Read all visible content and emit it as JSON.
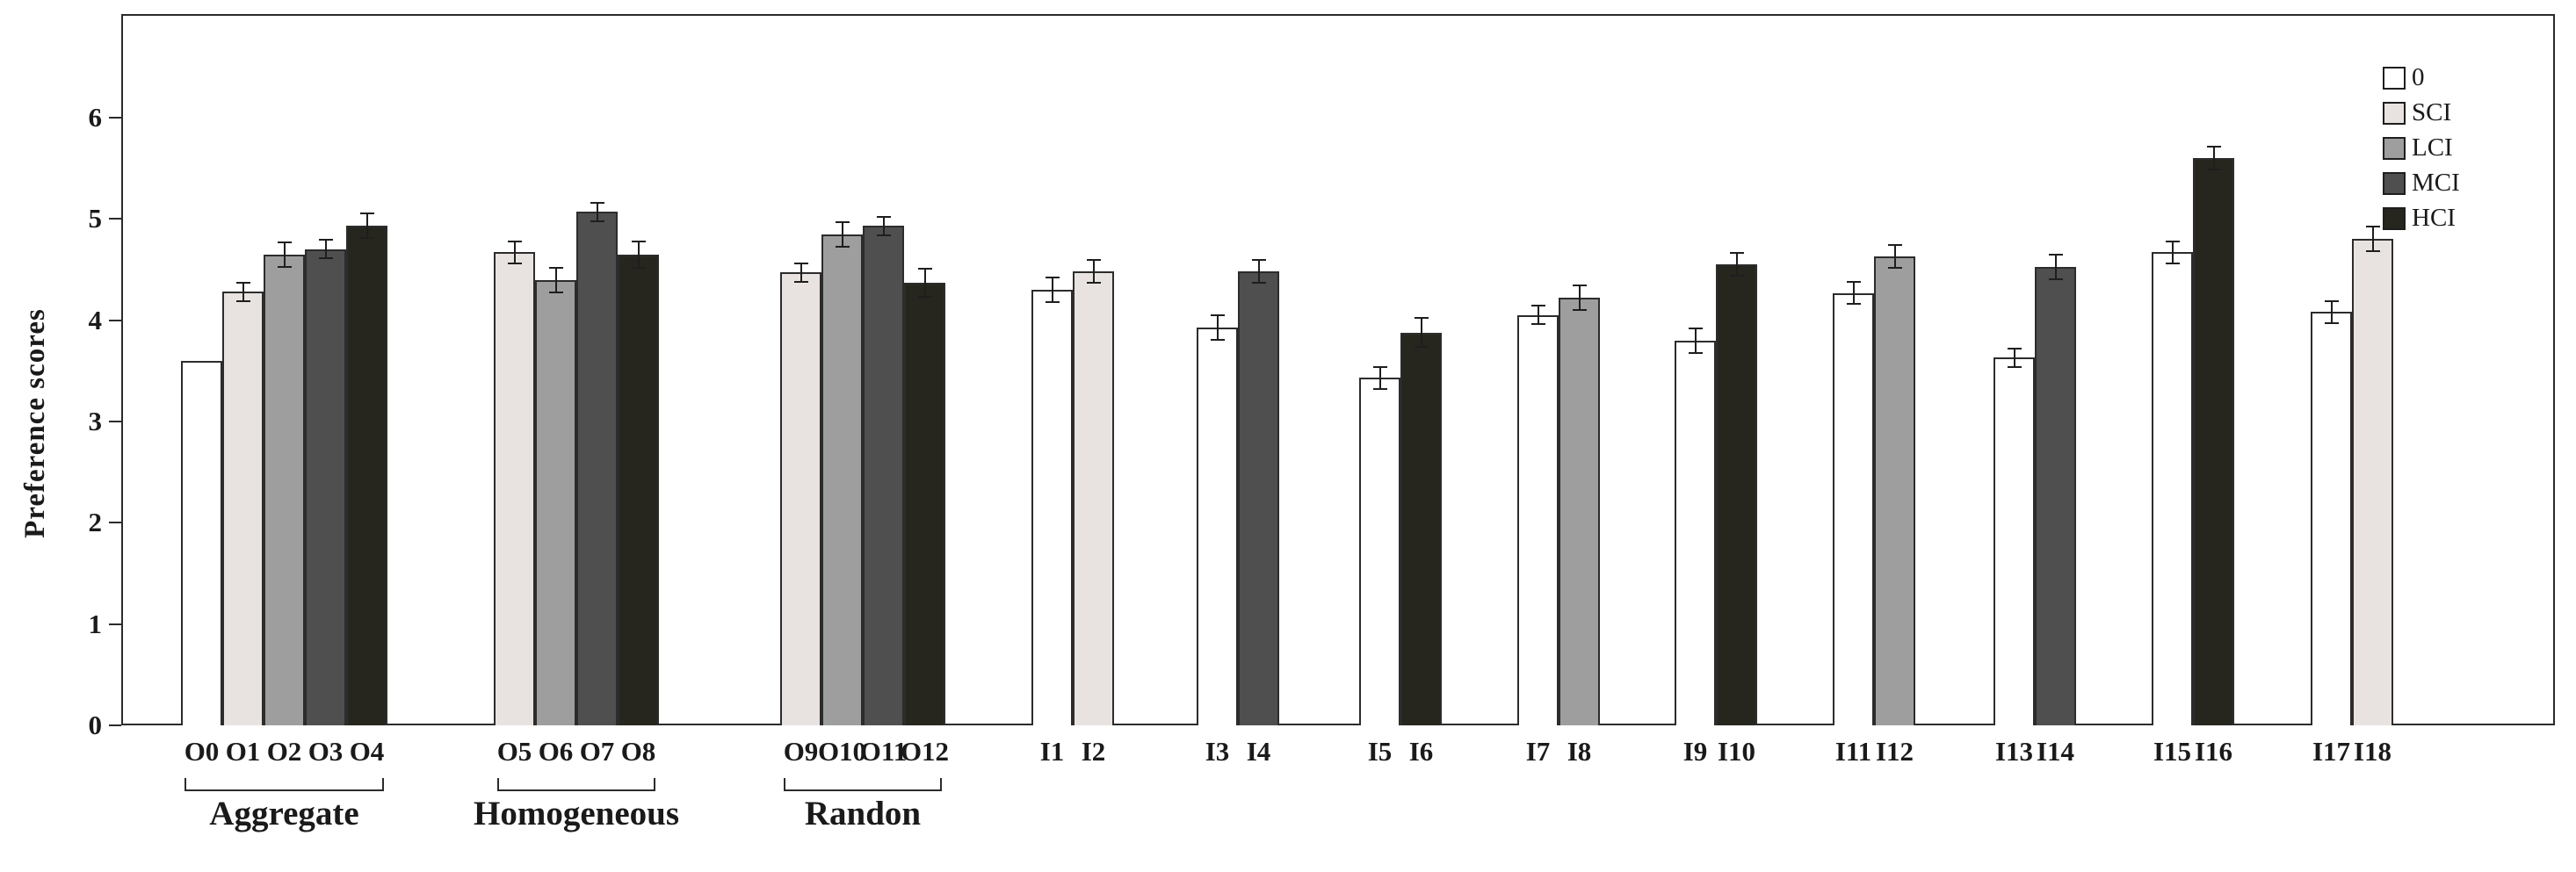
{
  "chart_data": {
    "type": "bar",
    "title": "",
    "xlabel": "",
    "ylabel": "Preference scores",
    "ylim": [
      0,
      6
    ],
    "yticks": [
      0,
      1,
      2,
      3,
      4,
      5,
      6
    ],
    "grid": false,
    "legend_position": "top-right",
    "legend": [
      {
        "name": "0",
        "color": "#ffffff"
      },
      {
        "name": "SCI",
        "color": "#e8e3e1"
      },
      {
        "name": "LCI",
        "color": "#9e9e9e"
      },
      {
        "name": "MCI",
        "color": "#4f4f4f"
      },
      {
        "name": "HCI",
        "color": "#26261f"
      }
    ],
    "groups": [
      {
        "name": "Aggregate",
        "bracket": true,
        "bars": [
          {
            "label": "O0",
            "series": "0",
            "value": 3.6,
            "err": 0
          },
          {
            "label": "O1",
            "series": "SCI",
            "value": 4.28,
            "err": 0.1
          },
          {
            "label": "O2",
            "series": "LCI",
            "value": 4.65,
            "err": 0.13
          },
          {
            "label": "O3",
            "series": "MCI",
            "value": 4.7,
            "err": 0.1
          },
          {
            "label": "O4",
            "series": "HCI",
            "value": 4.93,
            "err": 0.13
          }
        ]
      },
      {
        "name": "Homogeneous",
        "bracket": true,
        "bars": [
          {
            "label": "O5",
            "series": "SCI",
            "value": 4.67,
            "err": 0.12
          },
          {
            "label": "O6",
            "series": "LCI",
            "value": 4.4,
            "err": 0.13
          },
          {
            "label": "O7",
            "series": "MCI",
            "value": 5.07,
            "err": 0.1
          },
          {
            "label": "O8",
            "series": "HCI",
            "value": 4.65,
            "err": 0.14
          }
        ]
      },
      {
        "name": "Randon",
        "bracket": true,
        "bars": [
          {
            "label": "O9",
            "series": "SCI",
            "value": 4.47,
            "err": 0.1
          },
          {
            "label": "O10",
            "series": "LCI",
            "value": 4.85,
            "err": 0.13
          },
          {
            "label": "O11",
            "series": "MCI",
            "value": 4.93,
            "err": 0.1
          },
          {
            "label": "O12",
            "series": "HCI",
            "value": 4.37,
            "err": 0.15
          }
        ]
      },
      {
        "name": "",
        "bracket": false,
        "bars": [
          {
            "label": "I1",
            "series": "0",
            "value": 4.3,
            "err": 0.13
          },
          {
            "label": "I2",
            "series": "SCI",
            "value": 4.48,
            "err": 0.12
          }
        ]
      },
      {
        "name": "",
        "bracket": false,
        "bars": [
          {
            "label": "I3",
            "series": "0",
            "value": 3.93,
            "err": 0.13
          },
          {
            "label": "I4",
            "series": "MCI",
            "value": 4.48,
            "err": 0.12
          }
        ]
      },
      {
        "name": "",
        "bracket": false,
        "bars": [
          {
            "label": "I5",
            "series": "0",
            "value": 3.43,
            "err": 0.12
          },
          {
            "label": "I6",
            "series": "HCI",
            "value": 3.88,
            "err": 0.15
          }
        ]
      },
      {
        "name": "",
        "bracket": false,
        "bars": [
          {
            "label": "I7",
            "series": "0",
            "value": 4.05,
            "err": 0.1
          },
          {
            "label": "I8",
            "series": "LCI",
            "value": 4.22,
            "err": 0.13
          }
        ]
      },
      {
        "name": "",
        "bracket": false,
        "bars": [
          {
            "label": "I9",
            "series": "0",
            "value": 3.8,
            "err": 0.13
          },
          {
            "label": "I10",
            "series": "HCI",
            "value": 4.55,
            "err": 0.12
          }
        ]
      },
      {
        "name": "",
        "bracket": false,
        "bars": [
          {
            "label": "I11",
            "series": "0",
            "value": 4.27,
            "err": 0.12
          },
          {
            "label": "I12",
            "series": "LCI",
            "value": 4.63,
            "err": 0.12
          }
        ]
      },
      {
        "name": "",
        "bracket": false,
        "bars": [
          {
            "label": "I13",
            "series": "0",
            "value": 3.63,
            "err": 0.1
          },
          {
            "label": "I14",
            "series": "MCI",
            "value": 4.53,
            "err": 0.13
          }
        ]
      },
      {
        "name": "",
        "bracket": false,
        "bars": [
          {
            "label": "I15",
            "series": "0",
            "value": 4.67,
            "err": 0.12
          },
          {
            "label": "I16",
            "series": "HCI",
            "value": 5.6,
            "err": 0.12
          }
        ]
      },
      {
        "name": "",
        "bracket": false,
        "bars": [
          {
            "label": "I17",
            "series": "0",
            "value": 4.08,
            "err": 0.12
          },
          {
            "label": "I18",
            "series": "SCI",
            "value": 4.8,
            "err": 0.13
          }
        ]
      }
    ]
  }
}
